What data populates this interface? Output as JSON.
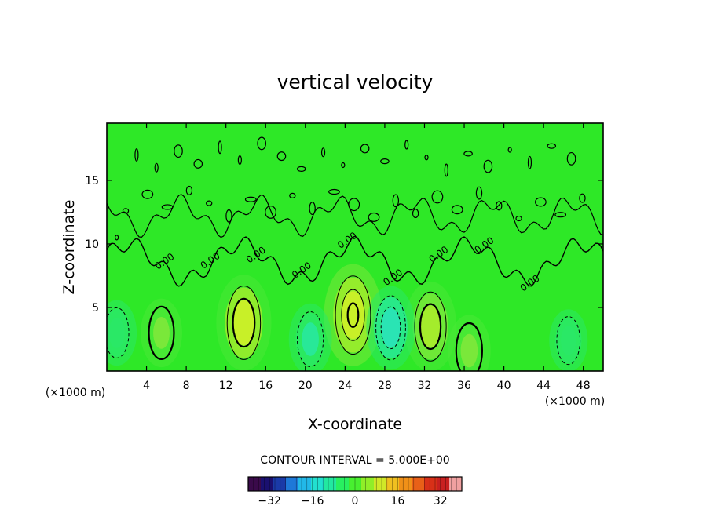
{
  "chart_data": {
    "type": "heatmap",
    "title": "vertical velocity",
    "xlabel": "X-coordinate",
    "ylabel": "Z-coordinate",
    "x_unit_label_left": "(×1000 m)",
    "x_unit_label_right": "(×1000 m)",
    "xlim": [
      0,
      50
    ],
    "ylim": [
      0,
      19.5
    ],
    "x_ticks": [
      {
        "value": 4,
        "label": "4"
      },
      {
        "value": 8,
        "label": "8"
      },
      {
        "value": 12,
        "label": "12"
      },
      {
        "value": 16,
        "label": "16"
      },
      {
        "value": 20,
        "label": "20"
      },
      {
        "value": 24,
        "label": "24"
      },
      {
        "value": 28,
        "label": "28"
      },
      {
        "value": 32,
        "label": "32"
      },
      {
        "value": 36,
        "label": "36"
      },
      {
        "value": 40,
        "label": "40"
      },
      {
        "value": 44,
        "label": "44"
      },
      {
        "value": 48,
        "label": "48"
      }
    ],
    "y_ticks": [
      {
        "value": 5,
        "label": "5"
      },
      {
        "value": 10,
        "label": "10"
      },
      {
        "value": 15,
        "label": "15"
      }
    ],
    "contour_interval_text": "CONTOUR INTERVAL = 5.000E+00",
    "contour_interval": 5.0,
    "contour_labels": [
      "0.00",
      "0.00",
      "0.00",
      "0.00",
      "0.00",
      "0.00",
      "0.00",
      "0.00",
      "0.00"
    ],
    "field_features": [
      {
        "kind": "updraft",
        "x": 13.8,
        "z": 3.8,
        "peak": 14
      },
      {
        "kind": "updraft",
        "x": 24.8,
        "z": 4.4,
        "peak": 16
      },
      {
        "kind": "updraft",
        "x": 32.6,
        "z": 3.5,
        "peak": 12
      },
      {
        "kind": "updraft",
        "x": 36.5,
        "z": 1.6,
        "peak": 6
      },
      {
        "kind": "updraft",
        "x": 5.5,
        "z": 3.0,
        "peak": 5
      },
      {
        "kind": "downdraft",
        "x": 28.6,
        "z": 3.4,
        "peak": -10
      },
      {
        "kind": "downdraft",
        "x": 20.5,
        "z": 2.5,
        "peak": -6
      },
      {
        "kind": "downdraft",
        "x": 1.0,
        "z": 3.0,
        "peak": -4
      },
      {
        "kind": "downdraft",
        "x": 46.5,
        "z": 2.4,
        "peak": -3
      }
    ],
    "colorbar": {
      "ticks": [
        {
          "value": -32,
          "label": "−32"
        },
        {
          "value": -16,
          "label": "−16"
        },
        {
          "value": 0,
          "label": "0"
        },
        {
          "value": 16,
          "label": "16"
        },
        {
          "value": 32,
          "label": "32"
        }
      ],
      "range": [
        -40,
        40
      ],
      "colors": [
        "#3a0a4a",
        "#1a1070",
        "#1a3aa8",
        "#1e78d8",
        "#22b8e8",
        "#22e0d0",
        "#22e8a0",
        "#28f060",
        "#48f030",
        "#90ee28",
        "#d0e828",
        "#f0c020",
        "#f09018",
        "#e86018",
        "#d83018",
        "#c82020",
        "#f0a0a0"
      ]
    }
  }
}
